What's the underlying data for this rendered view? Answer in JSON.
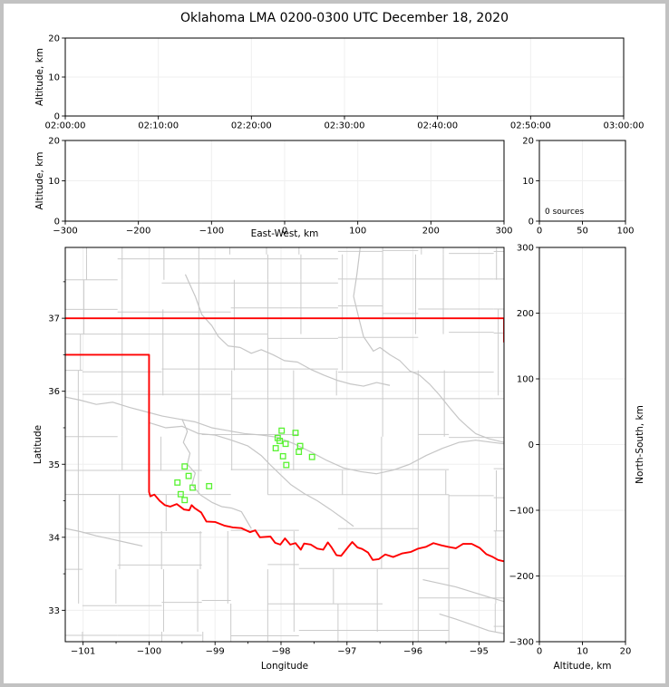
{
  "figure": {
    "title": "Oklahoma LMA 0200-0300 UTC December 18, 2020",
    "frame_color": "#c2c2c2",
    "background": "#ffffff"
  },
  "colors": {
    "axis": "#000000",
    "grid": "#efefef",
    "county": "#cbcbcb",
    "river": "#c6c6c6",
    "state_border": "#ff0000",
    "source_marker": "#58f231"
  },
  "chart_data": [
    {
      "name": "time_height",
      "type": "scatter",
      "title": "",
      "xlabel": "",
      "ylabel": "Altitude, km",
      "xlim": [
        0,
        3600
      ],
      "xtick_values": [
        0,
        600,
        1200,
        1800,
        2400,
        3000,
        3600
      ],
      "xtick_labels": [
        "02:00:00",
        "02:10:00",
        "02:20:00",
        "02:30:00",
        "02:40:00",
        "02:50:00",
        "03:00:00"
      ],
      "ylim": [
        0,
        20
      ],
      "ytick_values": [
        0,
        10,
        20
      ],
      "ytick_labels": [
        "0",
        "10",
        "20"
      ],
      "grid": true,
      "points": []
    },
    {
      "name": "ew_height",
      "type": "scatter",
      "xlabel": "East-West, km",
      "ylabel": "Altitude, km",
      "xlim": [
        -300,
        300
      ],
      "xtick_values": [
        -300,
        -200,
        -100,
        0,
        100,
        200,
        300
      ],
      "xtick_labels": [
        "−300",
        "−200",
        "−100",
        "0",
        "100",
        "200",
        "300"
      ],
      "ylim": [
        0,
        20
      ],
      "ytick_values": [
        0,
        10,
        20
      ],
      "ytick_labels": [
        "0",
        "10",
        "20"
      ],
      "grid": true,
      "points": []
    },
    {
      "name": "alt_histogram",
      "type": "line",
      "annotation": "0 sources",
      "xlabel": "",
      "ylabel": "",
      "xlim": [
        0,
        100
      ],
      "xtick_values": [
        0,
        50,
        100
      ],
      "xtick_labels": [
        "0",
        "50",
        "100"
      ],
      "ylim": [
        0,
        20
      ],
      "ytick_values": [
        0,
        10,
        20
      ],
      "ytick_labels": [
        "0",
        "10",
        "20"
      ],
      "grid": true,
      "points": []
    },
    {
      "name": "plan_view",
      "type": "scatter",
      "xlabel": "Longitude",
      "ylabel": "Latitude",
      "xlim": [
        -101.27,
        -94.62
      ],
      "xtick_values": [
        -101,
        -100,
        -99,
        -98,
        -97,
        -96,
        -95
      ],
      "xtick_labels": [
        "−101",
        "−100",
        "−99",
        "−98",
        "−97",
        "−96",
        "−95"
      ],
      "ylim": [
        32.57,
        37.97
      ],
      "ytick_values": [
        33,
        34,
        35,
        36,
        37
      ],
      "ytick_labels": [
        "33",
        "34",
        "35",
        "36",
        "37"
      ],
      "minor_tick_step": 0.5,
      "grid": true,
      "sources_lon_lat": [
        [
          -97.99,
          35.46
        ],
        [
          -97.78,
          35.43
        ],
        [
          -98.05,
          35.36
        ],
        [
          -98.02,
          35.32
        ],
        [
          -97.93,
          35.28
        ],
        [
          -98.08,
          35.22
        ],
        [
          -97.71,
          35.25
        ],
        [
          -97.73,
          35.17
        ],
        [
          -97.97,
          35.11
        ],
        [
          -97.53,
          35.1
        ],
        [
          -97.92,
          34.99
        ],
        [
          -99.46,
          34.97
        ],
        [
          -99.4,
          34.84
        ],
        [
          -99.57,
          34.75
        ],
        [
          -99.34,
          34.68
        ],
        [
          -99.09,
          34.7
        ],
        [
          -99.52,
          34.59
        ],
        [
          -99.46,
          34.51
        ]
      ],
      "state_border": [
        [
          [
            -101.27,
            37.0
          ],
          [
            -94.62,
            37.0
          ],
          [
            -94.62,
            36.67
          ]
        ],
        [
          [
            -101.27,
            36.5
          ],
          [
            -100.0,
            36.5
          ],
          [
            -100.0,
            34.62
          ],
          [
            -99.98,
            34.56
          ],
          [
            -99.92,
            34.585
          ],
          [
            -99.84,
            34.5
          ],
          [
            -99.76,
            34.44
          ],
          [
            -99.68,
            34.42
          ],
          [
            -99.58,
            34.455
          ],
          [
            -99.47,
            34.38
          ],
          [
            -99.39,
            34.37
          ],
          [
            -99.355,
            34.44
          ],
          [
            -99.31,
            34.4
          ],
          [
            -99.21,
            34.34
          ],
          [
            -99.13,
            34.215
          ],
          [
            -99.0,
            34.21
          ],
          [
            -98.86,
            34.16
          ],
          [
            -98.73,
            34.135
          ],
          [
            -98.6,
            34.125
          ],
          [
            -98.47,
            34.07
          ],
          [
            -98.39,
            34.095
          ],
          [
            -98.32,
            34.0
          ],
          [
            -98.16,
            34.01
          ],
          [
            -98.09,
            33.925
          ],
          [
            -98.01,
            33.9
          ],
          [
            -97.94,
            33.985
          ],
          [
            -97.86,
            33.9
          ],
          [
            -97.78,
            33.92
          ],
          [
            -97.7,
            33.83
          ],
          [
            -97.65,
            33.915
          ],
          [
            -97.55,
            33.9
          ],
          [
            -97.45,
            33.845
          ],
          [
            -97.36,
            33.83
          ],
          [
            -97.29,
            33.93
          ],
          [
            -97.24,
            33.87
          ],
          [
            -97.16,
            33.755
          ],
          [
            -97.09,
            33.745
          ],
          [
            -96.98,
            33.87
          ],
          [
            -96.92,
            33.935
          ],
          [
            -96.84,
            33.86
          ],
          [
            -96.77,
            33.84
          ],
          [
            -96.68,
            33.79
          ],
          [
            -96.61,
            33.69
          ],
          [
            -96.52,
            33.7
          ],
          [
            -96.42,
            33.765
          ],
          [
            -96.3,
            33.73
          ],
          [
            -96.16,
            33.78
          ],
          [
            -96.03,
            33.8
          ],
          [
            -95.92,
            33.845
          ],
          [
            -95.8,
            33.87
          ],
          [
            -95.69,
            33.92
          ],
          [
            -95.57,
            33.89
          ],
          [
            -95.47,
            33.87
          ],
          [
            -95.35,
            33.85
          ],
          [
            -95.24,
            33.91
          ],
          [
            -95.11,
            33.91
          ],
          [
            -94.99,
            33.855
          ],
          [
            -94.89,
            33.77
          ],
          [
            -94.79,
            33.73
          ],
          [
            -94.71,
            33.69
          ],
          [
            -94.62,
            33.67
          ]
        ]
      ],
      "rivers": [
        [
          [
            -99.45,
            37.6
          ],
          [
            -99.3,
            37.3
          ],
          [
            -99.2,
            37.05
          ],
          [
            -99.05,
            36.9
          ],
          [
            -98.95,
            36.75
          ],
          [
            -98.8,
            36.62
          ],
          [
            -98.62,
            36.6
          ],
          [
            -98.45,
            36.52
          ],
          [
            -98.3,
            36.57
          ],
          [
            -98.12,
            36.5
          ],
          [
            -97.95,
            36.42
          ],
          [
            -97.75,
            36.4
          ],
          [
            -97.55,
            36.3
          ],
          [
            -97.35,
            36.22
          ],
          [
            -97.15,
            36.15
          ],
          [
            -96.95,
            36.1
          ],
          [
            -96.75,
            36.07
          ],
          [
            -96.55,
            36.12
          ],
          [
            -96.35,
            36.08
          ]
        ],
        [
          [
            -96.8,
            37.97
          ],
          [
            -96.85,
            37.6
          ],
          [
            -96.9,
            37.3
          ],
          [
            -96.82,
            37.0
          ],
          [
            -96.75,
            36.75
          ],
          [
            -96.6,
            36.55
          ],
          [
            -96.5,
            36.6
          ],
          [
            -96.35,
            36.5
          ],
          [
            -96.2,
            36.42
          ],
          [
            -96.05,
            36.28
          ],
          [
            -95.9,
            36.22
          ],
          [
            -95.75,
            36.1
          ],
          [
            -95.6,
            35.95
          ],
          [
            -95.45,
            35.78
          ],
          [
            -95.3,
            35.62
          ],
          [
            -95.18,
            35.52
          ],
          [
            -95.05,
            35.42
          ],
          [
            -94.85,
            35.35
          ],
          [
            -94.62,
            35.3
          ]
        ],
        [
          [
            -101.27,
            35.92
          ],
          [
            -101.05,
            35.88
          ],
          [
            -100.8,
            35.82
          ],
          [
            -100.55,
            35.85
          ],
          [
            -100.3,
            35.78
          ],
          [
            -100.05,
            35.72
          ],
          [
            -99.8,
            35.66
          ],
          [
            -99.55,
            35.62
          ],
          [
            -99.3,
            35.58
          ],
          [
            -99.05,
            35.5
          ],
          [
            -98.8,
            35.46
          ],
          [
            -98.55,
            35.42
          ],
          [
            -98.3,
            35.4
          ],
          [
            -98.05,
            35.37
          ],
          [
            -97.8,
            35.28
          ],
          [
            -97.55,
            35.17
          ],
          [
            -97.3,
            35.05
          ],
          [
            -97.05,
            34.95
          ],
          [
            -96.8,
            34.9
          ],
          [
            -96.55,
            34.87
          ],
          [
            -96.3,
            34.92
          ],
          [
            -96.05,
            35.0
          ],
          [
            -95.8,
            35.12
          ],
          [
            -95.55,
            35.22
          ],
          [
            -95.3,
            35.3
          ],
          [
            -95.05,
            35.33
          ],
          [
            -94.8,
            35.3
          ],
          [
            -94.62,
            35.28
          ]
        ],
        [
          [
            -99.5,
            35.62
          ],
          [
            -99.42,
            35.45
          ],
          [
            -99.48,
            35.3
          ],
          [
            -99.38,
            35.15
          ],
          [
            -99.42,
            35.0
          ],
          [
            -99.3,
            34.88
          ],
          [
            -99.35,
            34.72
          ],
          [
            -99.22,
            34.58
          ],
          [
            -99.05,
            34.48
          ],
          [
            -98.9,
            34.42
          ],
          [
            -98.75,
            34.4
          ],
          [
            -98.6,
            34.35
          ],
          [
            -98.45,
            34.12
          ]
        ],
        [
          [
            -100.0,
            35.57
          ],
          [
            -99.75,
            35.5
          ],
          [
            -99.5,
            35.52
          ],
          [
            -99.25,
            35.42
          ],
          [
            -99.0,
            35.4
          ],
          [
            -98.75,
            35.33
          ],
          [
            -98.5,
            35.25
          ],
          [
            -98.3,
            35.12
          ],
          [
            -98.15,
            34.98
          ],
          [
            -98.0,
            34.85
          ],
          [
            -97.85,
            34.72
          ],
          [
            -97.65,
            34.6
          ],
          [
            -97.45,
            34.5
          ],
          [
            -97.25,
            34.38
          ],
          [
            -97.05,
            34.25
          ],
          [
            -96.9,
            34.15
          ]
        ],
        [
          [
            -101.27,
            34.12
          ],
          [
            -101.05,
            34.08
          ],
          [
            -100.8,
            34.02
          ],
          [
            -100.55,
            33.97
          ],
          [
            -100.3,
            33.92
          ],
          [
            -100.1,
            33.88
          ]
        ],
        [
          [
            -95.85,
            33.42
          ],
          [
            -95.6,
            33.37
          ],
          [
            -95.35,
            33.32
          ],
          [
            -95.1,
            33.25
          ],
          [
            -94.85,
            33.18
          ],
          [
            -94.62,
            33.12
          ]
        ],
        [
          [
            -95.6,
            32.95
          ],
          [
            -95.35,
            32.88
          ],
          [
            -95.1,
            32.8
          ],
          [
            -94.85,
            32.72
          ],
          [
            -94.62,
            32.68
          ]
        ]
      ],
      "points": []
    },
    {
      "name": "ns_height",
      "type": "scatter",
      "xlabel": "Altitude, km",
      "ylabel_right": "North-South, km",
      "xlim": [
        0,
        20
      ],
      "xtick_values": [
        0,
        10,
        20
      ],
      "xtick_labels": [
        "0",
        "10",
        "20"
      ],
      "ylim": [
        -300,
        300
      ],
      "ytick_values": [
        -300,
        -200,
        -100,
        0,
        100,
        200,
        300
      ],
      "ytick_labels": [
        "−300",
        "−200",
        "−100",
        "0",
        "100",
        "200",
        "300"
      ],
      "grid": true,
      "points": []
    }
  ]
}
